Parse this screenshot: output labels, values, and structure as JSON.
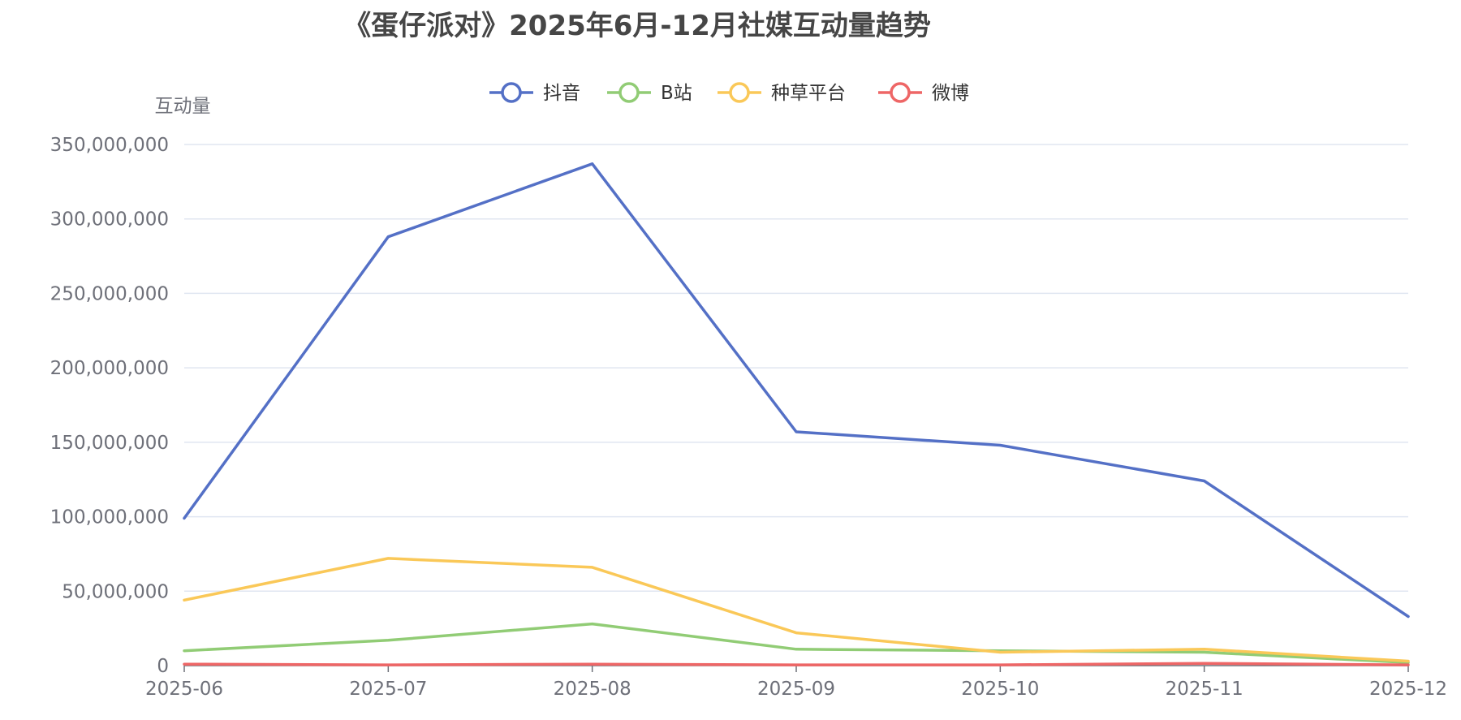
{
  "chart_data": {
    "type": "line",
    "title": "《蛋仔派对》2025年6月-12月社媒互动量趋势",
    "ylabel": "互动量",
    "xlabel": "",
    "categories": [
      "2025-06",
      "2025-07",
      "2025-08",
      "2025-09",
      "2025-10",
      "2025-11",
      "2025-12"
    ],
    "y_ticks": [
      "0",
      "50,000,000",
      "100,000,000",
      "150,000,000",
      "200,000,000",
      "250,000,000",
      "300,000,000",
      "350,000,000"
    ],
    "ylim": [
      0,
      350000000
    ],
    "grid": true,
    "legend_position": "top-center",
    "series": [
      {
        "name": "抖音",
        "color": "#5470c6",
        "values": [
          99000000,
          288000000,
          337000000,
          157000000,
          148000000,
          124000000,
          33000000
        ]
      },
      {
        "name": "B站",
        "color": "#91cc75",
        "values": [
          10000000,
          17000000,
          28000000,
          11000000,
          10000000,
          9000000,
          2000000
        ]
      },
      {
        "name": "种草平台",
        "color": "#fac858",
        "values": [
          44000000,
          72000000,
          66000000,
          22000000,
          9000000,
          11000000,
          3000000
        ]
      },
      {
        "name": "微博",
        "color": "#ee6666",
        "values": [
          1000000,
          500000,
          1000000,
          500000,
          500000,
          1500000,
          500000
        ]
      }
    ]
  }
}
